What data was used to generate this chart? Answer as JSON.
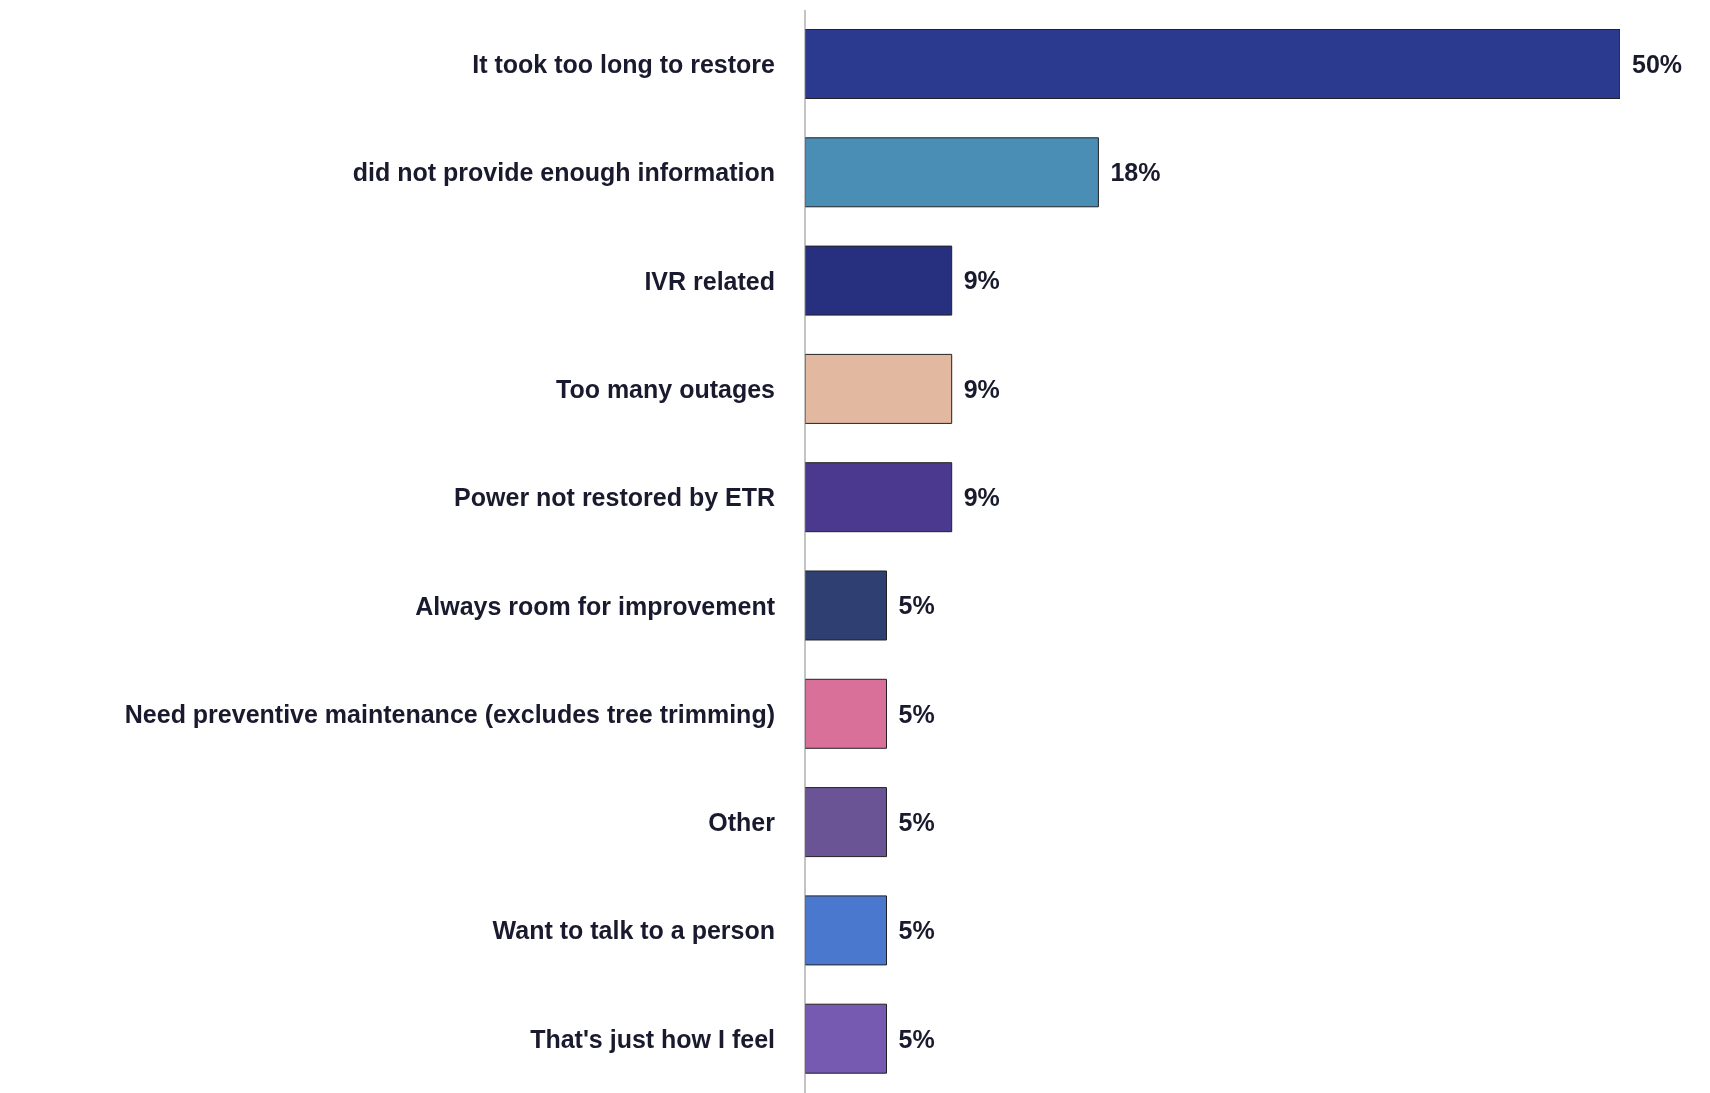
{
  "chart_data": {
    "type": "bar",
    "orientation": "horizontal",
    "categories": [
      "It took too long to restore",
      "did not provide enough information",
      "IVR related",
      "Too many outages",
      "Power not restored by ETR",
      "Always room for improvement",
      "Need preventive maintenance (excludes tree trimming)",
      "Other",
      "Want to talk to a person",
      "That's just how I feel"
    ],
    "values": [
      50,
      18,
      9,
      9,
      9,
      5,
      5,
      5,
      5,
      5
    ],
    "value_labels": [
      "50%",
      "18%",
      "9%",
      "9%",
      "9%",
      "5%",
      "5%",
      "5%",
      "5%",
      "5%"
    ],
    "colors": [
      "#2b3a8f",
      "#4a8db5",
      "#26307f",
      "#e2b9a0",
      "#4b3990",
      "#2f3f72",
      "#d9709a",
      "#6a5496",
      "#4a78cf",
      "#7659b0"
    ],
    "xlim": [
      0,
      50
    ],
    "grid": false
  }
}
